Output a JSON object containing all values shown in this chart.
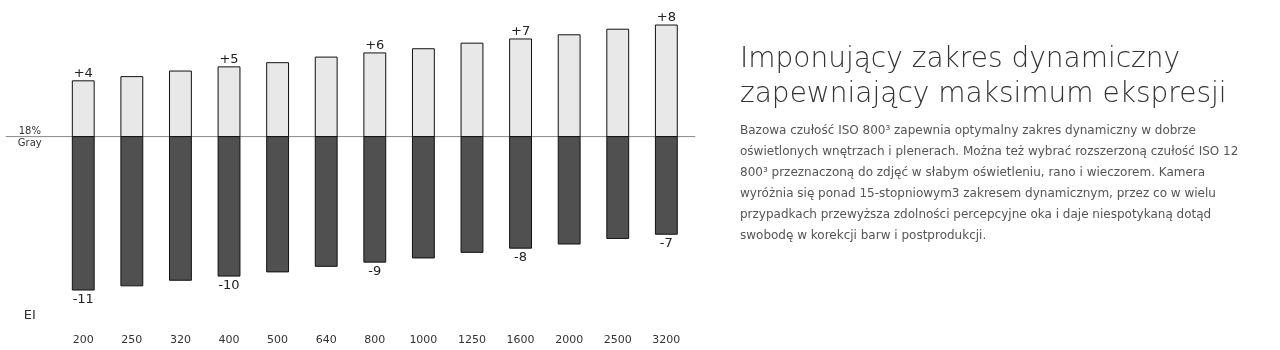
{
  "chart_data": {
    "type": "bar",
    "title": "Imponujący zakres dynamiczny zapewniający maksimum ekspresji",
    "xlabel": "EI",
    "categories": [
      "200",
      "250",
      "320",
      "400",
      "500",
      "640",
      "800",
      "1000",
      "1250",
      "1600",
      "2000",
      "2500",
      "3200"
    ],
    "series": [
      {
        "color": "#e8e8e8",
        "values": [
          4,
          4.3,
          4.7,
          5,
          5.3,
          5.7,
          6,
          6.3,
          6.7,
          7,
          7.3,
          7.7,
          8
        ],
        "value_labels": [
          "+4",
          null,
          null,
          "+5",
          null,
          null,
          "+6",
          null,
          null,
          "+7",
          null,
          null,
          "+8"
        ]
      },
      {
        "color": "#505050",
        "values": [
          -11,
          -10.7,
          -10.3,
          -10,
          -9.7,
          -9.3,
          -9,
          -8.7,
          -8.3,
          -8,
          -7.7,
          -7.3,
          -7
        ],
        "value_labels": [
          "-11",
          null,
          null,
          "-10",
          null,
          null,
          "-9",
          null,
          null,
          "-8",
          null,
          null,
          "-7"
        ]
      }
    ],
    "ref_lines": [
      {
        "axis": "y",
        "value": 0,
        "label": "18%\nGray",
        "color": "#888888"
      }
    ],
    "stacked": true,
    "annotations": [
      "Bazowa czułość ISO 800³ zapewnia optymalny zakres dynamiczny w dobrze oświetlonych wnętrzach i plenerach. Można też wybrać rozszerzoną czułość ISO 12 800³ przeznaczoną do zdjęć w słabym oświetleniu, rano i wieczorem. Kamera wyróżnia się ponad 15-stopniowym3 zakresem dynamicznym, przez co w wielu przypadkach przewyższa zdolności percepcyjne oka i daje niespotykaną dotąd swobodę w korekcji barw i postprodukcji."
    ],
    "grid": false
  }
}
